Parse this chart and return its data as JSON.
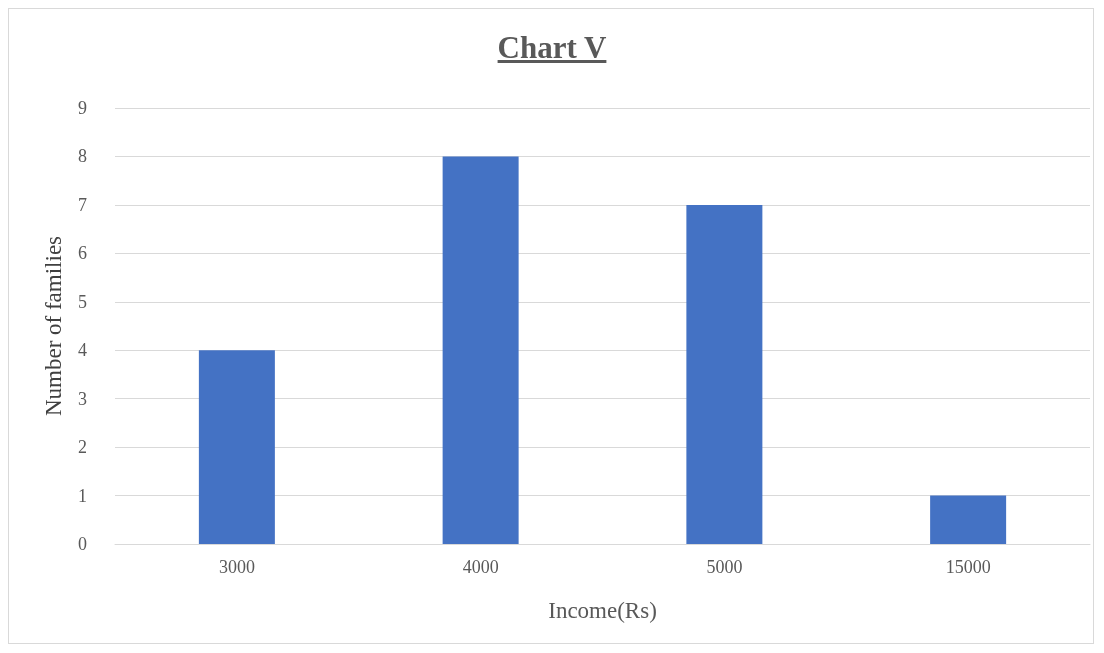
{
  "chart_data": {
    "type": "bar",
    "title": "Chart V",
    "xlabel": "Income(Rs)",
    "ylabel": "Number of families",
    "categories": [
      "3000",
      "4000",
      "5000",
      "15000"
    ],
    "values": [
      4,
      8,
      7,
      1
    ],
    "color": "#4472c4",
    "ylim": [
      0,
      9
    ],
    "yticks": [
      0,
      1,
      2,
      3,
      4,
      5,
      6,
      7,
      8,
      9
    ],
    "grid": "y"
  }
}
